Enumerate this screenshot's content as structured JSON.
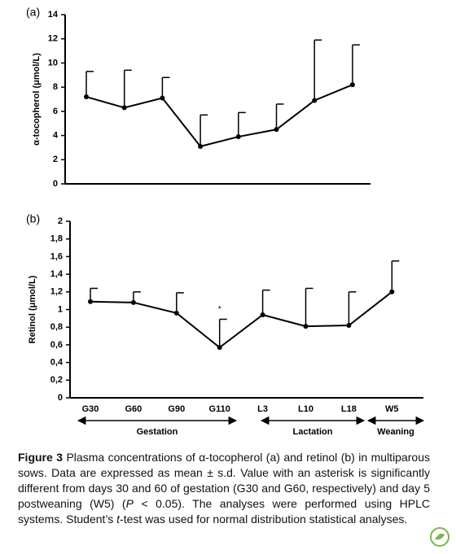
{
  "chart_data": [
    {
      "type": "line",
      "panel_label": "(a)",
      "y_label": "α-tocopherol (μmol/L)",
      "categories": [
        null,
        null,
        null,
        null,
        null,
        null,
        null,
        null
      ],
      "values": [
        7.2,
        6.3,
        7.1,
        3.1,
        3.9,
        4.5,
        6.9,
        8.2
      ],
      "errors": [
        2.1,
        3.1,
        1.7,
        2.6,
        2.0,
        2.1,
        5.0,
        3.3
      ],
      "color": "#000000",
      "ylim": [
        0,
        14
      ],
      "yticks": [
        0,
        2,
        4,
        6,
        8,
        10,
        12,
        14
      ]
    },
    {
      "type": "line",
      "panel_label": "(b)",
      "y_label": "Retinol (μmol/L)",
      "categories": [
        "G30",
        "G60",
        "G90",
        "G110",
        "L3",
        "L10",
        "L18",
        "W5"
      ],
      "values": [
        1.09,
        1.08,
        0.96,
        0.57,
        0.94,
        0.81,
        0.82,
        1.2
      ],
      "errors": [
        0.15,
        0.12,
        0.23,
        0.32,
        0.28,
        0.43,
        0.38,
        0.35
      ],
      "annotation": "*",
      "groups": [
        "Gestation",
        "Lactation",
        "Weaning"
      ],
      "color": "#000000",
      "ylim": [
        0,
        2
      ],
      "yticks": [
        0,
        {
          "value": 0.2,
          "label": "0,2"
        },
        {
          "value": 0.4,
          "label": "0,4"
        },
        {
          "value": 0.6,
          "label": "0,6"
        },
        {
          "value": 0.8,
          "label": "0,8"
        },
        1,
        {
          "value": 1.2,
          "label": "1,2"
        },
        {
          "value": 1.4,
          "label": "1,4"
        },
        {
          "value": 1.6,
          "label": "1,6"
        },
        {
          "value": 1.8,
          "label": "1,8"
        },
        2
      ]
    }
  ],
  "caption": [
    "Figure 3",
    " Plasma concentrations of α-tocopherol (a) and retinol (b) in multiparous sows. Data are expressed as mean ± s.d. Value with an asterisk is significantly different from days 30 and 60 of gestation (G30 and G60, respectively) and day 5 postweaning (W5) (",
    "P",
    " < 0.05). The analyses were performed using HPLC systems. Student’s ",
    "t",
    "-test was used for normal distribution statistical analyses."
  ]
}
